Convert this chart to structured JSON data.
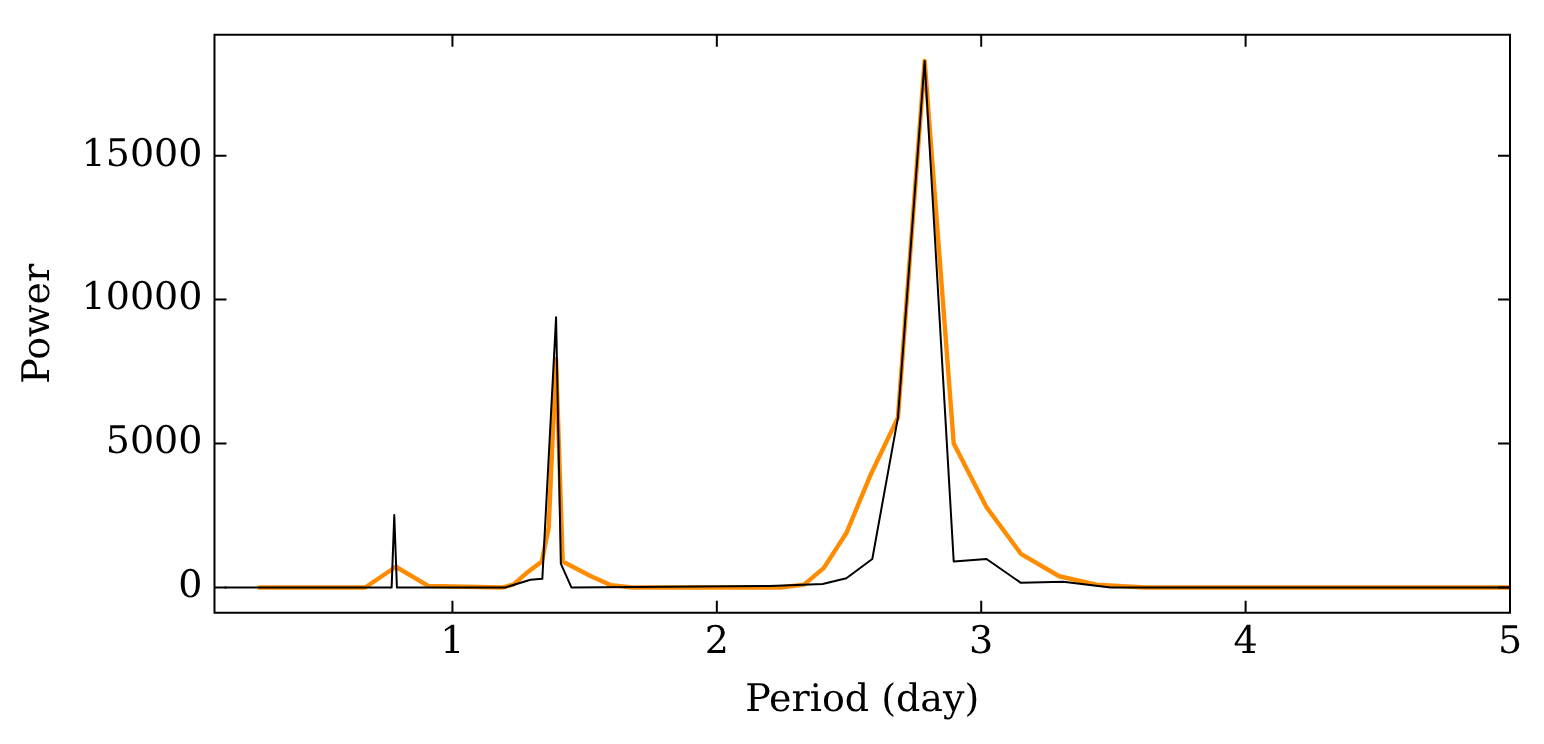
{
  "chart_data": {
    "type": "line",
    "xlabel": "Period (day)",
    "ylabel": "Power",
    "xlim": [
      0.1,
      5
    ],
    "xticks": [
      1,
      2,
      3,
      4,
      5
    ],
    "ylim": [
      -880,
      19200
    ],
    "yticks": [
      0,
      5000,
      10000,
      15000
    ],
    "grid": false,
    "marker": "none",
    "line_style": "solid",
    "series": [
      {
        "color": "#000000",
        "x": [
          0.14,
          0.7,
          0.77,
          0.78,
          0.79,
          0.85,
          1.2,
          1.295,
          1.34,
          1.392,
          1.41,
          1.45,
          2.2,
          2.4,
          2.49,
          2.588,
          2.685,
          2.786,
          2.896,
          3.02,
          3.15,
          3.31,
          3.49,
          5
        ],
        "values": [
          0,
          0,
          0,
          2520,
          0,
          0,
          0,
          270,
          300,
          9390,
          830,
          0,
          50,
          120,
          320,
          990,
          5900,
          18290,
          900,
          990,
          160,
          200,
          0,
          0
        ]
      },
      {
        "color": "#ff8c00",
        "x": [
          0.27,
          0.67,
          0.786,
          0.91,
          1.19,
          1.23,
          1.28,
          1.338,
          1.364,
          1.392,
          1.417,
          1.524,
          1.6,
          1.68,
          2.24,
          2.33,
          2.405,
          2.49,
          2.58,
          2.685,
          2.786,
          2.896,
          3.02,
          3.15,
          3.295,
          3.435,
          3.62,
          5
        ],
        "values": [
          0,
          0,
          720,
          50,
          0,
          100,
          500,
          900,
          2070,
          7930,
          900,
          390,
          80,
          0,
          0,
          100,
          680,
          1890,
          3880,
          5900,
          18290,
          5000,
          2790,
          1170,
          390,
          100,
          0,
          0
        ]
      }
    ]
  }
}
